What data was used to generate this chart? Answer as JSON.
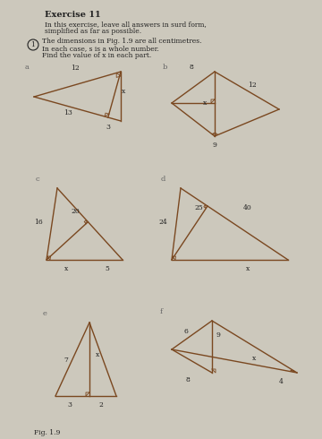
{
  "title": "Exercise 11",
  "subtitle1": "In this exercise, leave all answers in surd form,",
  "subtitle2": "simplified as far as possible.",
  "q_number": "1",
  "q_text1": "The dimensions in Fig. 1.9 are all centimetres.",
  "q_text2": "In each case, s is a whole number.",
  "q_text3": "Find the value of x in each part.",
  "fig_label": "Fig. 1.9",
  "bg_color": "#ccc8bc",
  "line_color": "#7a4820",
  "text_color": "#222222",
  "dim_color": "#444444"
}
